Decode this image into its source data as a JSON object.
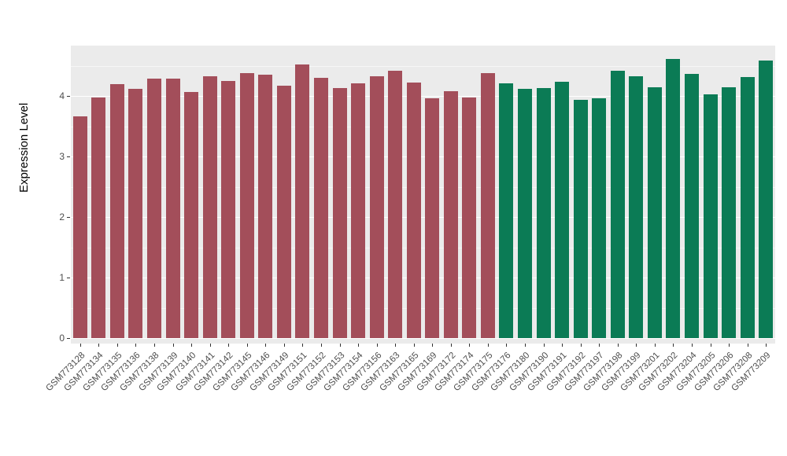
{
  "chart_data": {
    "type": "bar",
    "title": "",
    "xlabel": "",
    "ylabel": "Expression Level",
    "ylim": [
      0,
      4.83
    ],
    "yticks": [
      0,
      1,
      2,
      3,
      4
    ],
    "yticks_minor": [
      0.5,
      1.5,
      2.5,
      3.5,
      4.5
    ],
    "grid": "on",
    "legend": "none",
    "panel_background": "#EBEBEB",
    "colors": {
      "group1": "#A34E5A",
      "group2": "#0B7B55"
    },
    "categories": [
      "GSM773128",
      "GSM773134",
      "GSM773135",
      "GSM773136",
      "GSM773138",
      "GSM773139",
      "GSM773140",
      "GSM773141",
      "GSM773142",
      "GSM773145",
      "GSM773146",
      "GSM773149",
      "GSM773151",
      "GSM773152",
      "GSM773153",
      "GSM773154",
      "GSM773156",
      "GSM773163",
      "GSM773165",
      "GSM773169",
      "GSM773172",
      "GSM773174",
      "GSM773175",
      "GSM773176",
      "GSM773180",
      "GSM773190",
      "GSM773191",
      "GSM773192",
      "GSM773197",
      "GSM773198",
      "GSM773199",
      "GSM773201",
      "GSM773202",
      "GSM773204",
      "GSM773205",
      "GSM773206",
      "GSM773208",
      "GSM773209"
    ],
    "values": [
      3.66,
      3.97,
      4.2,
      4.12,
      4.28,
      4.28,
      4.06,
      4.32,
      4.25,
      4.38,
      4.35,
      4.17,
      4.52,
      4.3,
      4.13,
      4.21,
      4.33,
      4.42,
      4.22,
      3.96,
      4.08,
      3.98,
      4.38,
      4.21,
      4.12,
      4.13,
      4.23,
      3.94,
      3.96,
      4.41,
      4.32,
      4.14,
      4.61,
      4.36,
      4.03,
      4.14,
      4.31,
      4.59
    ],
    "groups": [
      "group1",
      "group1",
      "group1",
      "group1",
      "group1",
      "group1",
      "group1",
      "group1",
      "group1",
      "group1",
      "group1",
      "group1",
      "group1",
      "group1",
      "group1",
      "group1",
      "group1",
      "group1",
      "group1",
      "group1",
      "group1",
      "group1",
      "group1",
      "group2",
      "group2",
      "group2",
      "group2",
      "group2",
      "group2",
      "group2",
      "group2",
      "group2",
      "group2",
      "group2",
      "group2",
      "group2",
      "group2",
      "group2"
    ]
  }
}
